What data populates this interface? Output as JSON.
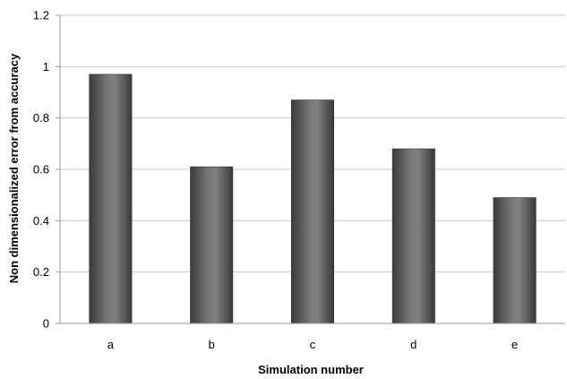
{
  "chart_data": {
    "type": "bar",
    "categories": [
      "a",
      "b",
      "c",
      "d",
      "e"
    ],
    "values": [
      0.97,
      0.61,
      0.87,
      0.68,
      0.49
    ],
    "xlabel": "Simulation number",
    "ylabel": "Non dimensionalized error from accuracy",
    "ylim": [
      0,
      1.2
    ],
    "yticks": [
      "0",
      "0.2",
      "0.4",
      "0.6",
      "0.8",
      "1",
      "1.2"
    ],
    "ytick_values": [
      0,
      0.2,
      0.4,
      0.6,
      0.8,
      1.0,
      1.2
    ],
    "grid": true,
    "legend": "none",
    "colors": {
      "bar_dark": "#3c3c3c",
      "bar_light": "#8a8a8a",
      "grid": "#c8c8c8",
      "axis": "#9a9a9a"
    }
  }
}
